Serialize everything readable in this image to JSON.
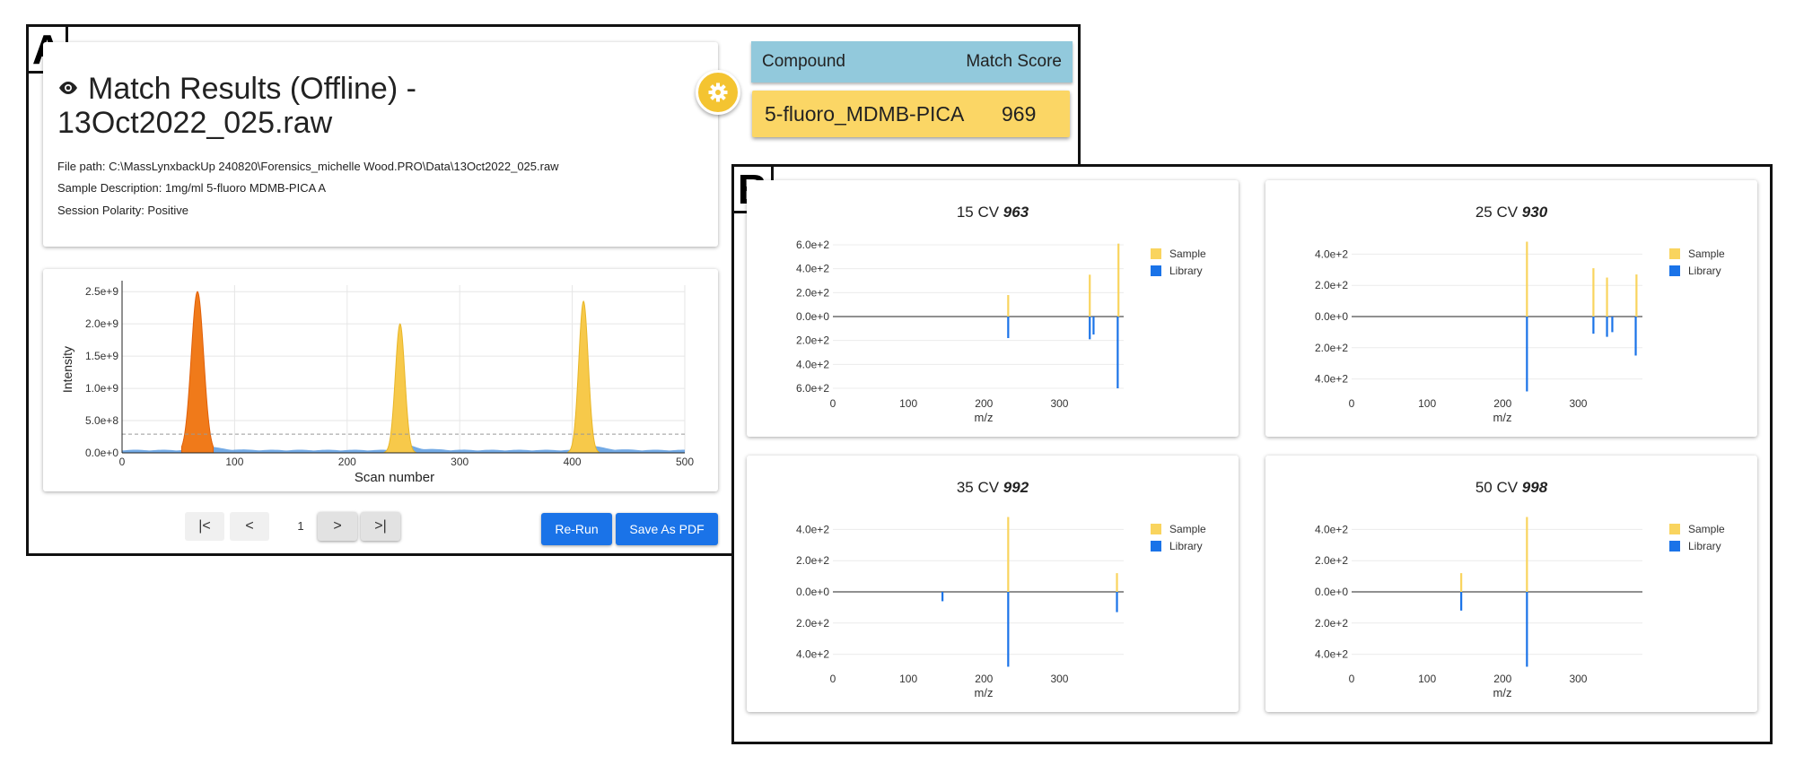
{
  "panel_a": {
    "letter": "A",
    "title": "Match Results (Offline) -",
    "title_file": "13Oct2022_025.raw",
    "file_path": "File path: C:\\MassLynxbackUp 240820\\Forensics_michelle Wood.PRO\\Data\\13Oct2022_025.raw",
    "sample_description": "Sample Description: 1mg/ml 5-fluoro MDMB-PICA A",
    "session_polarity": "Session Polarity: Positive",
    "pager": {
      "first": "|<",
      "prev": "<",
      "page": "1",
      "next": ">",
      "last": ">|"
    },
    "rerun_label": "Re-Run",
    "save_pdf_label": "Save As PDF",
    "compound_table": {
      "col_compound": "Compound",
      "col_score": "Match Score",
      "rows": [
        {
          "compound": "5-fluoro_MDMB-PICA",
          "score": "969"
        }
      ]
    }
  },
  "panel_b": {
    "letter": "B",
    "legend": {
      "sample": "Sample",
      "library": "Library"
    },
    "x_ticks": [
      "0",
      "100",
      "200",
      "300"
    ],
    "x_label": "m/z"
  },
  "colors": {
    "sample": "#f9d45e",
    "library": "#1a73e8",
    "orange": "#f07a1a",
    "gold": "#f4c431",
    "header_blue": "#92c9dc"
  },
  "icons": {
    "eye": "eye-icon",
    "gear": "gear-icon",
    "first": "first-page-icon",
    "prev": "chevron-left-icon",
    "next": "chevron-right-icon",
    "last": "last-page-icon"
  },
  "chart_data": [
    {
      "type": "area",
      "title": "",
      "xlabel": "Scan number",
      "ylabel": "Intensity",
      "xlim": [
        0,
        500
      ],
      "ylim": [
        0,
        2600000000.0
      ],
      "x_ticks": [
        "0",
        "100",
        "200",
        "300",
        "400",
        "500"
      ],
      "y_ticks": [
        "0.0e+0",
        "5.0e+8",
        "1.0e+9",
        "1.5e+9",
        "2.0e+9",
        "2.5e+9"
      ],
      "threshold": 290000000.0,
      "peaks": [
        {
          "center": 67,
          "height": 2500000000.0,
          "color": "orange"
        },
        {
          "center": 247,
          "height": 2000000000.0,
          "color": "yellow"
        },
        {
          "center": 410,
          "height": 2350000000.0,
          "color": "yellow"
        }
      ],
      "baseline": 120000000.0
    },
    {
      "type": "bar",
      "cv": "15 CV",
      "score": "963",
      "ylim": [
        -600,
        600
      ],
      "y_ticks": [
        "6.0e+2",
        "4.0e+2",
        "2.0e+2",
        "0.0e+0",
        "2.0e+2",
        "4.0e+2",
        "6.0e+2"
      ],
      "sample": [
        {
          "mz": 232,
          "value": 180
        },
        {
          "mz": 340,
          "value": 350
        },
        {
          "mz": 378,
          "value": 610
        }
      ],
      "library": [
        {
          "mz": 232,
          "value": -180
        },
        {
          "mz": 340,
          "value": -190
        },
        {
          "mz": 345,
          "value": -150
        },
        {
          "mz": 377,
          "value": -600
        }
      ]
    },
    {
      "type": "bar",
      "cv": "25 CV",
      "score": "930",
      "ylim": [
        -460,
        460
      ],
      "y_ticks": [
        "4.0e+2",
        "2.0e+2",
        "0.0e+0",
        "2.0e+2",
        "4.0e+2"
      ],
      "sample": [
        {
          "mz": 232,
          "value": 480
        },
        {
          "mz": 320,
          "value": 310
        },
        {
          "mz": 338,
          "value": 250
        },
        {
          "mz": 377,
          "value": 270
        }
      ],
      "library": [
        {
          "mz": 232,
          "value": -480
        },
        {
          "mz": 320,
          "value": -110
        },
        {
          "mz": 338,
          "value": -130
        },
        {
          "mz": 345,
          "value": -100
        },
        {
          "mz": 376,
          "value": -250
        }
      ]
    },
    {
      "type": "bar",
      "cv": "35 CV",
      "score": "992",
      "ylim": [
        -460,
        460
      ],
      "y_ticks": [
        "4.0e+2",
        "2.0e+2",
        "0.0e+0",
        "2.0e+2",
        "4.0e+2"
      ],
      "sample": [
        {
          "mz": 232,
          "value": 480
        },
        {
          "mz": 376,
          "value": 120
        }
      ],
      "library": [
        {
          "mz": 145,
          "value": -60
        },
        {
          "mz": 232,
          "value": -480
        },
        {
          "mz": 376,
          "value": -130
        }
      ]
    },
    {
      "type": "bar",
      "cv": "50 CV",
      "score": "998",
      "ylim": [
        -460,
        460
      ],
      "y_ticks": [
        "4.0e+2",
        "2.0e+2",
        "0.0e+0",
        "2.0e+2",
        "4.0e+2"
      ],
      "sample": [
        {
          "mz": 145,
          "value": 120
        },
        {
          "mz": 232,
          "value": 480
        }
      ],
      "library": [
        {
          "mz": 145,
          "value": -120
        },
        {
          "mz": 232,
          "value": -480
        }
      ]
    }
  ]
}
